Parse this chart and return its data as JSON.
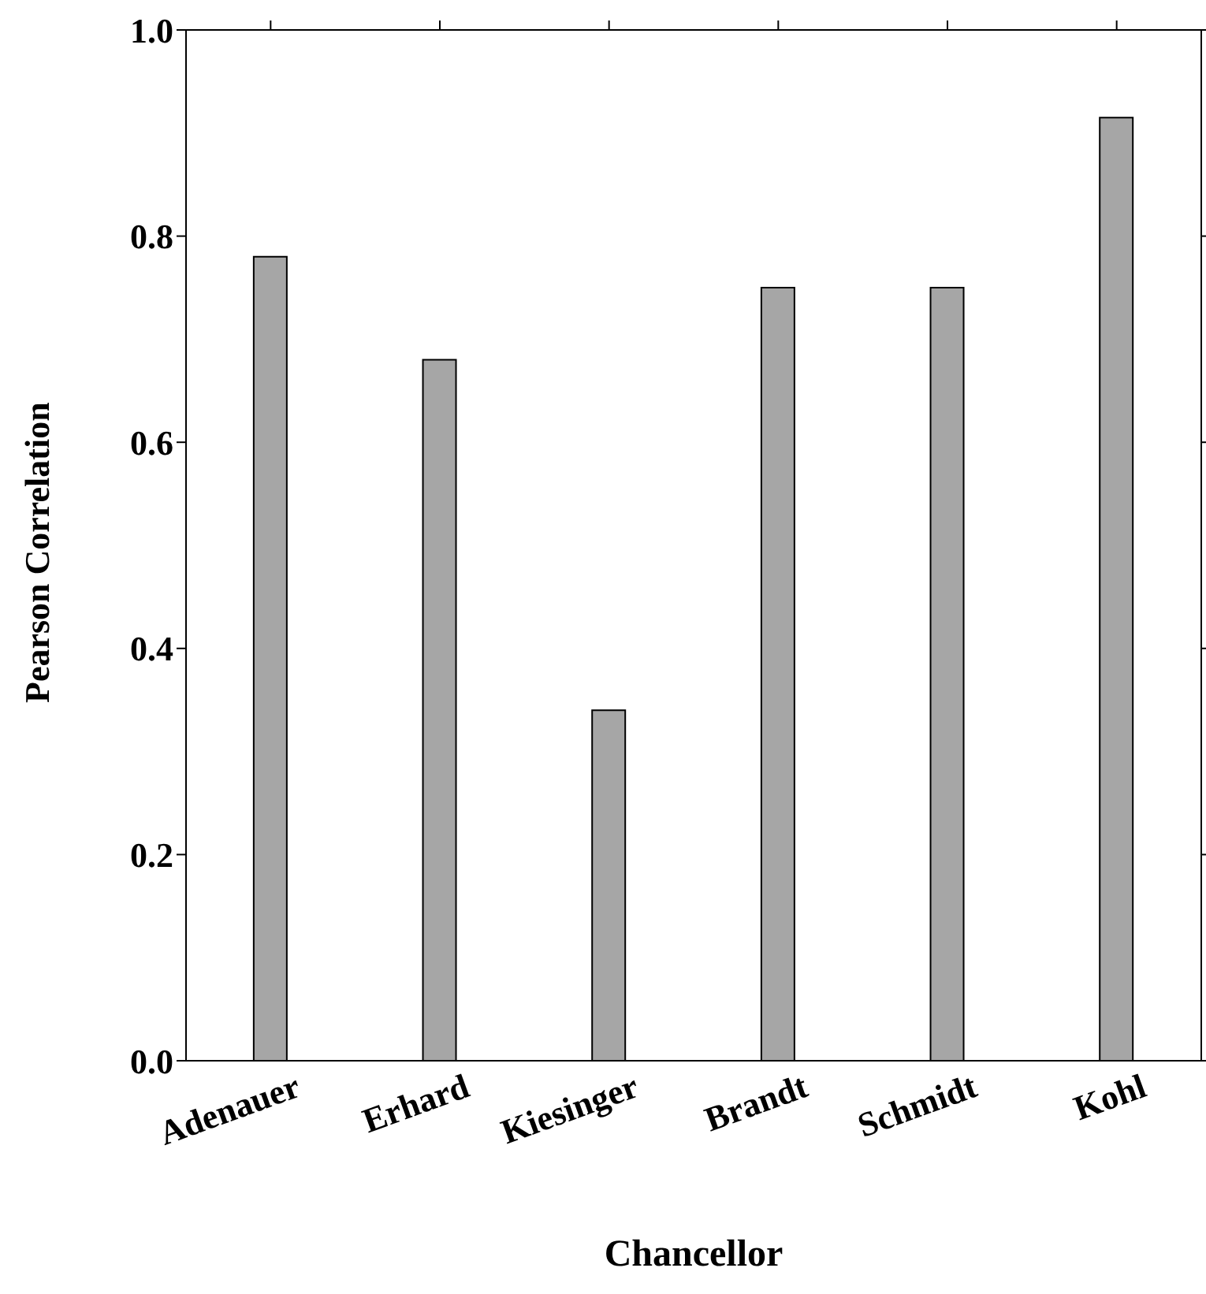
{
  "chart_data": {
    "type": "bar",
    "xlabel": "Chancellor",
    "ylabel": "Pearson Correlation",
    "categories": [
      "Adenauer",
      "Erhard",
      "Kiesinger",
      "Brandt",
      "Schmidt",
      "Kohl"
    ],
    "values": [
      0.78,
      0.68,
      0.34,
      0.75,
      0.75,
      0.915
    ],
    "color": "#a6a6a6",
    "ylim": [
      0,
      1
    ],
    "yticks": [
      {
        "value": 0,
        "label": "0.0"
      },
      0.2,
      0.4,
      0.6,
      0.8,
      {
        "value": 1,
        "label": "1.0"
      }
    ],
    "grid": false,
    "legend": false
  }
}
